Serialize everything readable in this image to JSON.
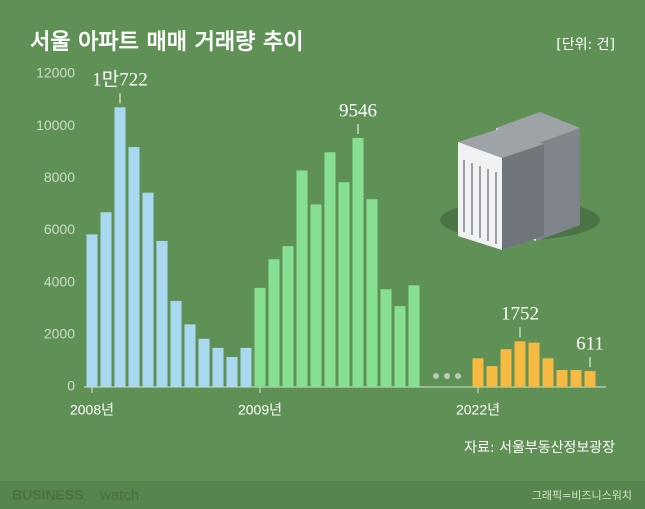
{
  "chart_data": {
    "type": "bar",
    "title": "서울 아파트 매매 거래량 추이",
    "unit": "[단위: 건]",
    "source": "자료: 서울부동산정보광장",
    "brand": {
      "business": "BUSINESS",
      "watch": "watch"
    },
    "credit": "그래픽=비즈니스워치",
    "categories": [
      "2008년",
      null,
      null,
      null,
      null,
      null,
      null,
      null,
      null,
      null,
      null,
      null,
      "2009년",
      null,
      null,
      null,
      null,
      null,
      null,
      null,
      null,
      null,
      null,
      null,
      "2022년",
      null,
      null,
      null,
      null,
      null,
      null,
      null,
      null
    ],
    "series": [
      {
        "color": "#a9d9f0",
        "values": [
          5850,
          6700,
          10722,
          9200,
          7450,
          5600,
          3300,
          2400,
          1850,
          1500,
          1150,
          1500,
          null,
          null,
          null,
          null,
          null,
          null,
          null,
          null,
          null,
          null,
          null,
          null,
          null,
          null,
          null,
          null,
          null,
          null,
          null,
          null,
          null
        ],
        "value_labels": [
          null,
          null,
          "1만722",
          null,
          null,
          null,
          null,
          null,
          null,
          null,
          null,
          null,
          null,
          null,
          null,
          null,
          null,
          null,
          null,
          null,
          null,
          null,
          null,
          null,
          null,
          null,
          null,
          null,
          null,
          null,
          null,
          null,
          null
        ]
      },
      {
        "color": "#87df92",
        "values": [
          null,
          null,
          null,
          null,
          null,
          null,
          null,
          null,
          null,
          null,
          null,
          null,
          3800,
          4900,
          5400,
          8300,
          7000,
          9000,
          7850,
          9546,
          7200,
          3750,
          3100,
          3900,
          null,
          null,
          null,
          null,
          null,
          null,
          null,
          null,
          null
        ],
        "value_labels": [
          null,
          null,
          null,
          null,
          null,
          null,
          null,
          null,
          null,
          null,
          null,
          null,
          null,
          null,
          null,
          null,
          null,
          null,
          null,
          9546,
          null,
          null,
          null,
          null,
          null,
          null,
          null,
          null,
          null,
          null,
          null,
          null,
          null
        ]
      },
      {
        "color": "#f6b942",
        "values": [
          null,
          null,
          null,
          null,
          null,
          null,
          null,
          null,
          null,
          null,
          null,
          null,
          null,
          null,
          null,
          null,
          null,
          null,
          null,
          null,
          null,
          null,
          null,
          null,
          1100,
          800,
          1450,
          1752,
          1700,
          1100,
          650,
          650,
          611
        ],
        "value_labels": [
          null,
          null,
          null,
          null,
          null,
          null,
          null,
          null,
          null,
          null,
          null,
          null,
          null,
          null,
          null,
          null,
          null,
          null,
          null,
          null,
          null,
          null,
          null,
          null,
          null,
          null,
          null,
          1752,
          null,
          null,
          null,
          null,
          611
        ]
      }
    ],
    "ylim": [
      0,
      12000
    ],
    "yticks": [
      0,
      2000,
      4000,
      6000,
      8000,
      10000,
      12000
    ],
    "grid": false
  }
}
